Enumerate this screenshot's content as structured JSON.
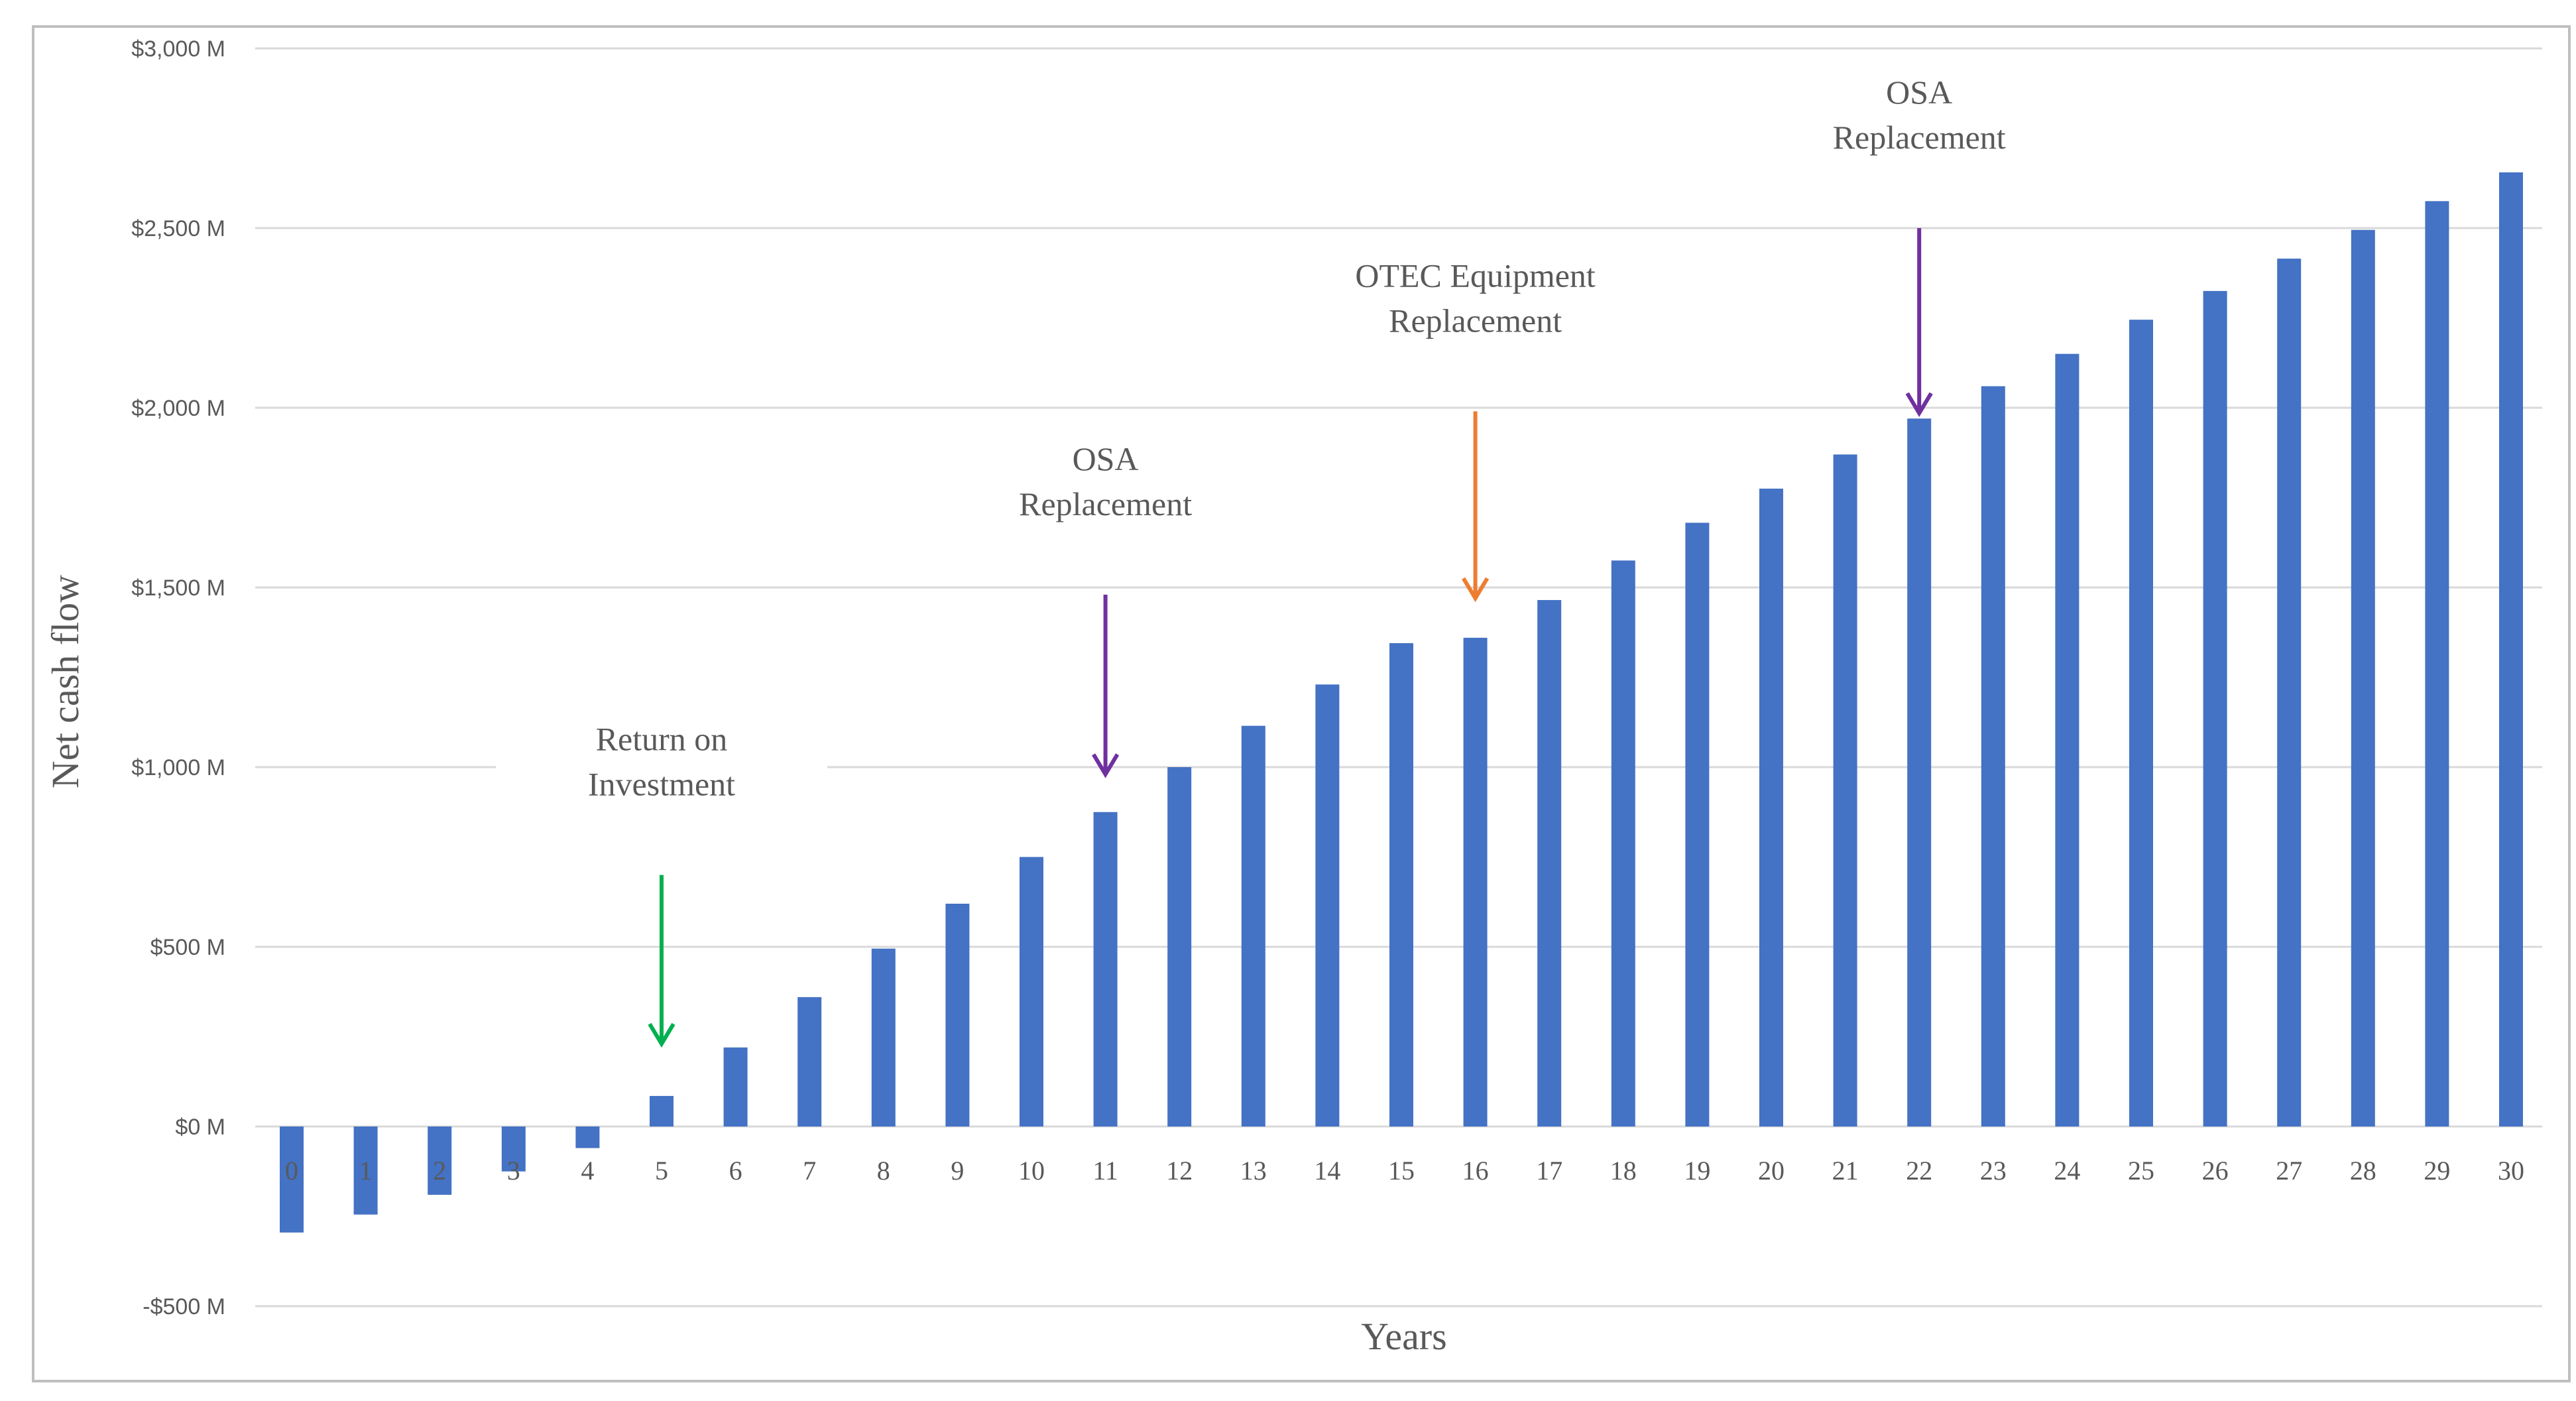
{
  "colors": {
    "bar": "#4472c4",
    "arrow_return": "#00b050",
    "arrow_osa": "#7030a0",
    "arrow_otec": "#ed7d31",
    "grid": "#d9d9d9",
    "text": "#595959",
    "border": "#bfbfbf"
  },
  "chart_data": {
    "type": "bar",
    "title": "",
    "xlabel": "Years",
    "ylabel": "Net cash flow",
    "ylim": [
      -500,
      3000
    ],
    "grid": true,
    "legend": "none",
    "yticks": [
      -500,
      0,
      500,
      1000,
      1500,
      2000,
      2500,
      3000
    ],
    "ytick_labels": [
      "-$500 M",
      "$0 M",
      "$500 M",
      "$1,000 M",
      "$1,500 M",
      "$2,000 M",
      "$2,500 M",
      "$3,000 M"
    ],
    "categories": [
      "0",
      "1",
      "2",
      "3",
      "4",
      "5",
      "6",
      "7",
      "8",
      "9",
      "10",
      "11",
      "12",
      "13",
      "14",
      "15",
      "16",
      "17",
      "18",
      "19",
      "20",
      "21",
      "22",
      "23",
      "24",
      "25",
      "26",
      "27",
      "28",
      "29",
      "30"
    ],
    "values": [
      -295,
      -245,
      -190,
      -125,
      -60,
      85,
      220,
      360,
      495,
      620,
      750,
      875,
      1000,
      1115,
      1230,
      1345,
      1360,
      1465,
      1575,
      1680,
      1775,
      1870,
      1970,
      2060,
      2150,
      2245,
      2325,
      2415,
      2495,
      2575,
      2655
    ],
    "annotations": [
      {
        "lines": [
          "Return on",
          "Investment"
        ],
        "year": 5,
        "arrow_from": 700,
        "arrow_to": 230,
        "color": "arrow_return"
      },
      {
        "lines": [
          "OSA",
          "Replacement"
        ],
        "year": 11,
        "arrow_from": 1480,
        "arrow_to": 980,
        "color": "arrow_osa"
      },
      {
        "lines": [
          "OTEC Equipment",
          "Replacement"
        ],
        "year": 16,
        "arrow_from": 1990,
        "arrow_to": 1470,
        "color": "arrow_otec"
      },
      {
        "lines": [
          "OSA",
          "Replacement"
        ],
        "year": 22,
        "arrow_from": 2500,
        "arrow_to": 1985,
        "color": "arrow_osa"
      }
    ]
  }
}
